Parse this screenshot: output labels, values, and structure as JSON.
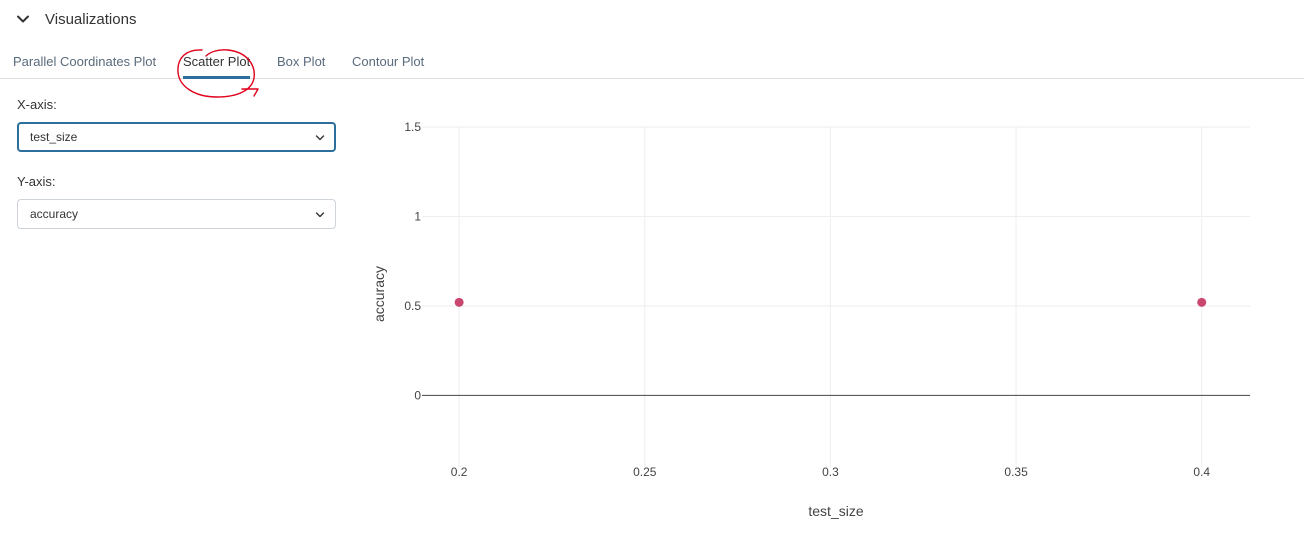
{
  "section": {
    "title": "Visualizations",
    "expand_icon": "chevron-down-icon"
  },
  "tabs": [
    {
      "label": "Parallel Coordinates Plot",
      "active": false
    },
    {
      "label": "Scatter Plot",
      "active": true
    },
    {
      "label": "Box Plot",
      "active": false
    },
    {
      "label": "Contour Plot",
      "active": false
    }
  ],
  "controls": {
    "x_axis": {
      "label": "X-axis:",
      "value": "test_size",
      "icon": "chevron-down-icon"
    },
    "y_axis": {
      "label": "Y-axis:",
      "value": "accuracy",
      "icon": "chevron-down-icon"
    }
  },
  "annotation": {
    "type": "hand-drawn circle",
    "color": "#e0001b"
  },
  "chart_data": {
    "type": "scatter",
    "title": "",
    "xlabel": "test_size",
    "ylabel": "accuracy",
    "x": [
      0.2,
      0.4
    ],
    "y": [
      0.52,
      0.52
    ],
    "xlim": [
      0.19,
      0.413
    ],
    "ylim": [
      -0.4,
      1.5
    ],
    "xticks": [
      "0.2",
      "0.25",
      "0.3",
      "0.35",
      "0.4"
    ],
    "xtick_values": [
      0.2,
      0.25,
      0.3,
      0.35,
      0.4
    ],
    "yticks": [
      "1.5",
      "1",
      "0.5",
      "0"
    ],
    "ytick_values": [
      1.5,
      1,
      0.5,
      0
    ],
    "marker_color": "#c9476f",
    "grid": true
  }
}
